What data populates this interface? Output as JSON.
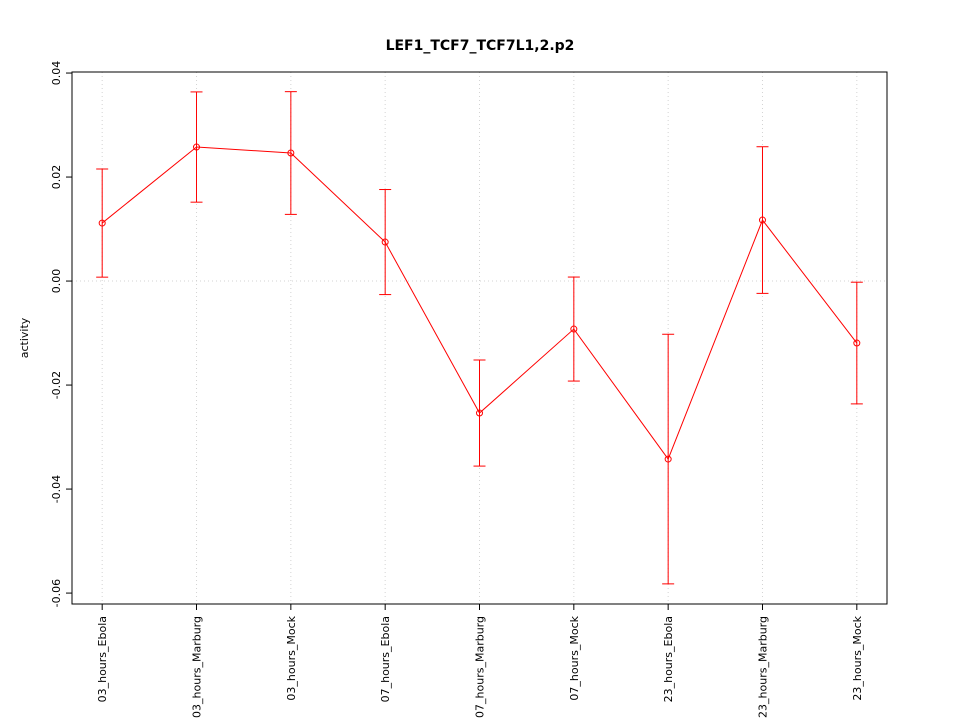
{
  "chart_data": {
    "type": "line",
    "title": "LEF1_TCF7_TCF7L1,2.p2",
    "y_label": "activity",
    "categories": [
      "03_hours_Ebola",
      "03_hours_Marburg",
      "03_hours_Mock",
      "07_hours_Ebola",
      "07_hours_Marburg",
      "07_hours_Mock",
      "23_hours_Ebola",
      "23_hours_Marburg",
      "23_hours_Mock"
    ],
    "series": [
      {
        "name": "activity",
        "color": "#ff0000",
        "values": [
          0.01115,
          0.02577,
          0.02462,
          0.0075,
          -0.02538,
          -0.00923,
          -0.03423,
          0.01173,
          -0.01192
        ],
        "errors": [
          0.0104,
          0.0106,
          0.0118,
          0.0101,
          0.0102,
          0.01,
          0.024,
          0.0141,
          0.0117
        ]
      }
    ],
    "ylim": [
      -0.0621,
      0.0402
    ],
    "yticks": [
      0.04,
      0.02,
      {
        "value": 0,
        "label": "0.00"
      },
      -0.02,
      -0.04,
      -0.06
    ],
    "grid": true
  }
}
